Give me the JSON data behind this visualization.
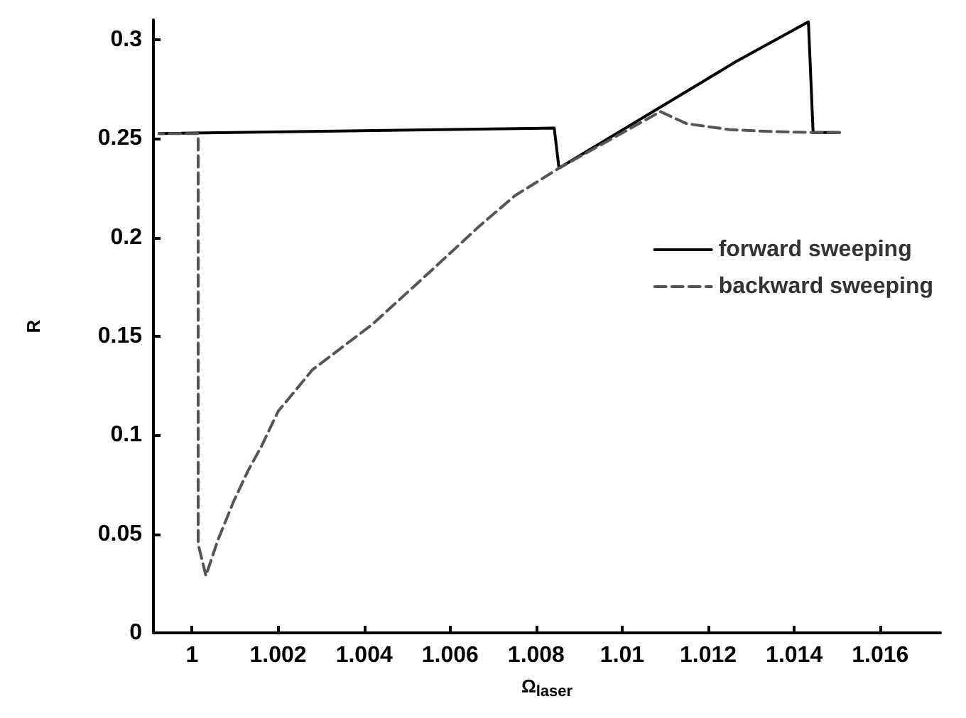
{
  "chart_data": {
    "type": "line",
    "xlabel": "Ω$_{laser}$",
    "ylabel": "R",
    "xlim": [
      0.9991,
      1.0174
    ],
    "xticks": [
      1,
      1.002,
      1.004,
      1.006,
      1.008,
      1.01,
      1.012,
      1.014,
      1.016
    ],
    "ylim": [
      0,
      0.31
    ],
    "yticks": [
      0,
      0.05,
      0.1,
      0.15,
      0.2,
      0.25,
      0.3
    ],
    "grid": false,
    "legend": "right",
    "marker": "none",
    "series": [
      {
        "name": "forward sweeping",
        "color": "#000000",
        "line_style": "solid",
        "x": [
          0.99923,
          1.00842,
          1.00853,
          1.01264,
          1.01433,
          1.01444,
          1.01505
        ],
        "values": [
          0.2525,
          0.2553,
          0.235,
          0.2888,
          0.309,
          0.253,
          0.253
        ]
      },
      {
        "name": "backward sweeping",
        "color": "#555555",
        "line_style": "dashed",
        "x": [
          1.01505,
          1.0145,
          1.0135,
          1.0125,
          1.0115,
          1.01089,
          1.00853,
          1.0075,
          1.00667,
          1.0055,
          1.00419,
          1.0028,
          1.002,
          1.00161,
          1.0013,
          1.00097,
          1.0006,
          1.00032,
          1.00014,
          1.00014,
          0.99923
        ],
        "values": [
          0.253,
          0.253,
          0.2535,
          0.2545,
          0.2575,
          0.2636,
          0.235,
          0.221,
          0.2055,
          0.182,
          0.156,
          0.1331,
          0.112,
          0.0943,
          0.082,
          0.0667,
          0.047,
          0.0289,
          0.045,
          0.2525,
          0.2525
        ]
      }
    ]
  }
}
